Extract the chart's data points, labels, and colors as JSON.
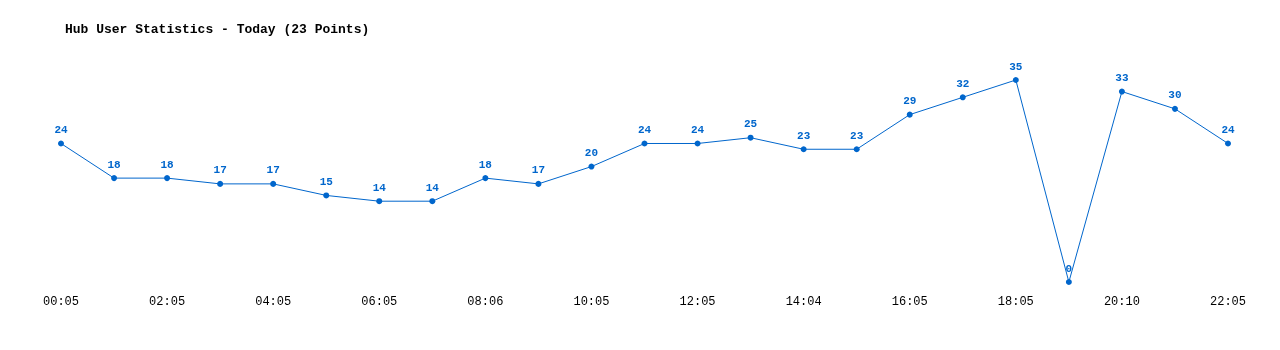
{
  "chart_data": {
    "type": "line",
    "title": "Hub User Statistics - Today (23 Points)",
    "categories": [
      "00:05",
      null,
      "02:05",
      null,
      "04:05",
      null,
      "06:05",
      null,
      "08:06",
      null,
      "10:05",
      null,
      "12:05",
      null,
      "14:04",
      null,
      "16:05",
      null,
      "18:05",
      null,
      "20:10",
      null,
      "22:05"
    ],
    "series": [
      {
        "color": "#0066cc",
        "values": [
          24,
          18,
          18,
          17,
          17,
          15,
          14,
          14,
          18,
          17,
          20,
          24,
          24,
          25,
          23,
          23,
          29,
          32,
          35,
          0,
          33,
          30,
          24
        ]
      }
    ],
    "data_labels": true,
    "marker": "circle",
    "line_style": "solid",
    "grid": false
  }
}
